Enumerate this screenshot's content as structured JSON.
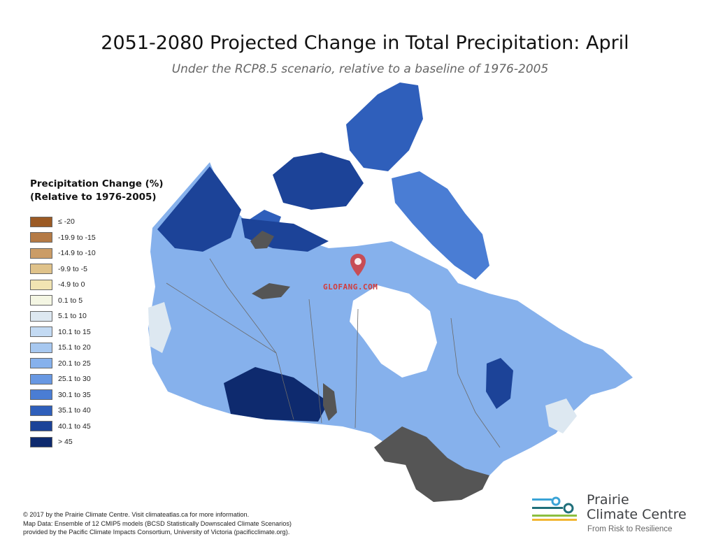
{
  "title": "2051-2080 Projected Change in Total Precipitation: April",
  "subtitle": "Under the RCP8.5 scenario, relative to a baseline of 1976-2005",
  "legend": {
    "title_line1": "Precipitation Change (%)",
    "title_line2": "(Relative to 1976-2005)",
    "items": [
      {
        "label": "≤ -20",
        "color": "#9b5a24"
      },
      {
        "label": "-19.9 to -15",
        "color": "#b47a45"
      },
      {
        "label": "-14.9 to -10",
        "color": "#cb9c66"
      },
      {
        "label": "-9.9 to -5",
        "color": "#dfc28a"
      },
      {
        "label": "-4.9 to 0",
        "color": "#f1e4b2"
      },
      {
        "label": "0.1 to 5",
        "color": "#f4f6e3"
      },
      {
        "label": "5.1 to 10",
        "color": "#dde8f1"
      },
      {
        "label": "10.1 to 15",
        "color": "#c3daf3"
      },
      {
        "label": "15.1 to 20",
        "color": "#a7c8f0"
      },
      {
        "label": "20.1 to 25",
        "color": "#86b1ec"
      },
      {
        "label": "25.1 to 30",
        "color": "#6898e2"
      },
      {
        "label": "30.1 to 35",
        "color": "#4a7dd4"
      },
      {
        "label": "35.1 to 40",
        "color": "#2f5fbb"
      },
      {
        "label": "40.1 to 45",
        "color": "#1c4398"
      },
      {
        "label": "> 45",
        "color": "#0e2a6e"
      }
    ]
  },
  "credits": {
    "line1": "© 2017 by the Prairie Climate Centre. Visit climateatlas.ca for more information.",
    "line2": "Map Data: Ensemble of 12 CMIP5 models (BCSD Statistically Downscaled Climate Scenarios)",
    "line3": "provided by the Pacific Climate Impacts Consortium, University of Victoria (pacificclimate.org)."
  },
  "logo": {
    "line1": "Prairie",
    "line2": "Climate Centre",
    "tagline": "From Risk to Resilience",
    "colors": {
      "blue": "#3aa3d6",
      "teal": "#1f6f7a",
      "green": "#8cbf3f",
      "yellow": "#f2b632"
    }
  },
  "watermark": {
    "text": "GLOFANG.COM",
    "color": "#d23c3c"
  },
  "map_colors": {
    "land": "#86b1ec",
    "dark": "#1c4398",
    "darkest": "#0e2a6e",
    "pale": "#dde8f1",
    "lakes": "#555555",
    "borders": "#6a6a6a"
  }
}
